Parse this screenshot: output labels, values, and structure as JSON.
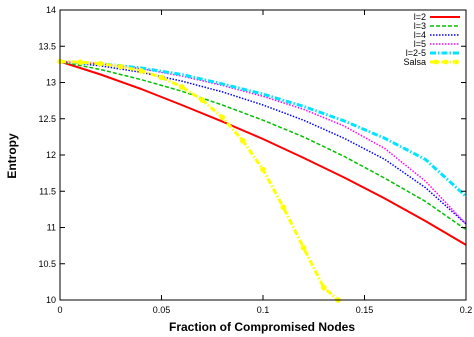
{
  "chart_data": {
    "type": "line",
    "title": "",
    "xlabel": "Fraction of Compromised Nodes",
    "ylabel": "Entropy",
    "xlim": [
      0,
      0.2
    ],
    "ylim": [
      10,
      14
    ],
    "xticks": [
      0,
      0.05,
      0.1,
      0.15,
      0.2
    ],
    "xtick_labels": [
      "0",
      "0.05",
      "0.1",
      "0.15",
      "0.2"
    ],
    "yticks": [
      10,
      10.5,
      11,
      11.5,
      12,
      12.5,
      13,
      13.5,
      14
    ],
    "ytick_labels": [
      "10",
      "10.5",
      "11",
      "11.5",
      "12",
      "12.5",
      "13",
      "13.5",
      "14"
    ],
    "grid": false,
    "legend_position": "top-right",
    "series": [
      {
        "name": "l=2",
        "color": "#ff0000",
        "style": "solid",
        "x": [
          0,
          0.02,
          0.04,
          0.06,
          0.08,
          0.1,
          0.12,
          0.14,
          0.16,
          0.18,
          0.2
        ],
        "y": [
          13.29,
          13.11,
          12.91,
          12.69,
          12.46,
          12.22,
          11.96,
          11.69,
          11.4,
          11.09,
          10.76
        ]
      },
      {
        "name": "l=3",
        "color": "#00c000",
        "style": "dashed",
        "x": [
          0,
          0.02,
          0.04,
          0.06,
          0.08,
          0.1,
          0.12,
          0.14,
          0.16,
          0.18,
          0.2
        ],
        "y": [
          13.29,
          13.18,
          13.04,
          12.88,
          12.69,
          12.48,
          12.25,
          11.98,
          11.68,
          11.36,
          10.97
        ]
      },
      {
        "name": "l=4",
        "color": "#0000ff",
        "style": "dotted",
        "x": [
          0,
          0.02,
          0.04,
          0.06,
          0.08,
          0.1,
          0.12,
          0.14,
          0.16,
          0.18,
          0.2
        ],
        "y": [
          13.29,
          13.23,
          13.14,
          13.02,
          12.87,
          12.69,
          12.48,
          12.23,
          11.94,
          11.55,
          11.05
        ]
      },
      {
        "name": "l=5",
        "color": "#ff00ff",
        "style": "dotted",
        "x": [
          0,
          0.02,
          0.04,
          0.06,
          0.08,
          0.1,
          0.12,
          0.14,
          0.16,
          0.18,
          0.2
        ],
        "y": [
          13.29,
          13.26,
          13.19,
          13.09,
          12.96,
          12.81,
          12.63,
          12.4,
          12.09,
          11.64,
          11.05
        ]
      },
      {
        "name": "l=2-5",
        "color": "#00e5ff",
        "style": "dash-dot",
        "x": [
          0,
          0.02,
          0.04,
          0.06,
          0.08,
          0.1,
          0.12,
          0.14,
          0.16,
          0.18,
          0.2
        ],
        "y": [
          13.29,
          13.26,
          13.2,
          13.11,
          12.98,
          12.84,
          12.67,
          12.47,
          12.23,
          11.94,
          11.43
        ]
      },
      {
        "name": "Salsa",
        "color": "#ffff00",
        "style": "dash-dot",
        "x": [
          0,
          0.01,
          0.02,
          0.03,
          0.04,
          0.05,
          0.06,
          0.07,
          0.08,
          0.09,
          0.1,
          0.11,
          0.12,
          0.13,
          0.137
        ],
        "y": [
          13.29,
          13.28,
          13.26,
          13.22,
          13.16,
          13.07,
          12.94,
          12.76,
          12.52,
          12.2,
          11.8,
          11.28,
          10.72,
          10.17,
          10.0
        ]
      }
    ]
  }
}
